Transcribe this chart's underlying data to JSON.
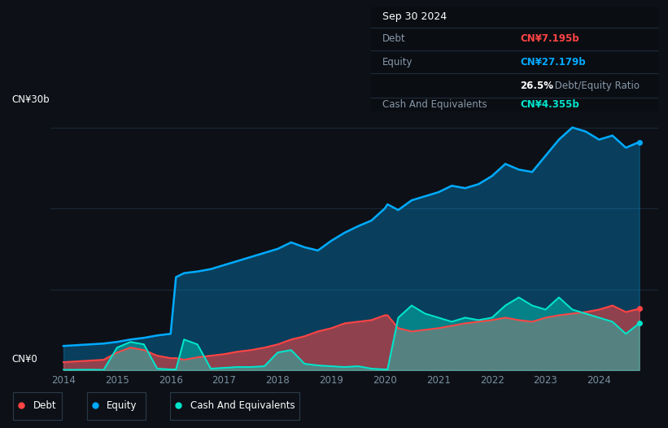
{
  "bg_color": "#0d1117",
  "plot_bg_color": "#0d1117",
  "grid_color": "#1e2d3d",
  "equity_color": "#00aaff",
  "debt_color": "#ff4444",
  "cash_color": "#00e5cc",
  "ylabel_30b": "CN¥30b",
  "ylabel_0": "CN¥0",
  "years": [
    2014.0,
    2014.25,
    2014.5,
    2014.75,
    2015.0,
    2015.25,
    2015.5,
    2015.75,
    2016.0,
    2016.1,
    2016.25,
    2016.5,
    2016.75,
    2017.0,
    2017.25,
    2017.5,
    2017.75,
    2018.0,
    2018.25,
    2018.5,
    2018.75,
    2019.0,
    2019.25,
    2019.5,
    2019.75,
    2020.0,
    2020.05,
    2020.25,
    2020.5,
    2020.75,
    2021.0,
    2021.25,
    2021.5,
    2021.75,
    2022.0,
    2022.25,
    2022.5,
    2022.75,
    2023.0,
    2023.25,
    2023.5,
    2023.75,
    2024.0,
    2024.25,
    2024.5,
    2024.75
  ],
  "equity": [
    3.0,
    3.1,
    3.2,
    3.3,
    3.5,
    3.8,
    4.0,
    4.3,
    4.5,
    11.5,
    12.0,
    12.2,
    12.5,
    13.0,
    13.5,
    14.0,
    14.5,
    15.0,
    15.8,
    15.2,
    14.8,
    16.0,
    17.0,
    17.8,
    18.5,
    20.0,
    20.5,
    19.8,
    21.0,
    21.5,
    22.0,
    22.8,
    22.5,
    23.0,
    24.0,
    25.5,
    24.8,
    24.5,
    26.5,
    28.5,
    30.0,
    29.5,
    28.5,
    29.0,
    27.5,
    28.2
  ],
  "debt": [
    1.0,
    1.1,
    1.2,
    1.3,
    2.2,
    2.8,
    2.5,
    1.8,
    1.5,
    1.5,
    1.3,
    1.6,
    1.8,
    2.0,
    2.3,
    2.5,
    2.8,
    3.2,
    3.8,
    4.2,
    4.8,
    5.2,
    5.8,
    6.0,
    6.2,
    6.8,
    6.8,
    5.2,
    4.8,
    5.0,
    5.2,
    5.5,
    5.8,
    6.0,
    6.2,
    6.5,
    6.2,
    6.0,
    6.5,
    6.8,
    7.0,
    7.2,
    7.5,
    8.0,
    7.2,
    7.6
  ],
  "cash": [
    0.05,
    0.06,
    0.07,
    0.05,
    2.8,
    3.5,
    3.2,
    0.2,
    0.1,
    0.1,
    3.8,
    3.2,
    0.2,
    0.3,
    0.4,
    0.4,
    0.5,
    2.2,
    2.5,
    0.8,
    0.6,
    0.5,
    0.4,
    0.5,
    0.2,
    0.1,
    0.1,
    6.5,
    8.0,
    7.0,
    6.5,
    6.0,
    6.5,
    6.2,
    6.5,
    8.0,
    9.0,
    8.0,
    7.5,
    9.0,
    7.5,
    7.0,
    6.5,
    6.0,
    4.5,
    5.8
  ],
  "ylim": [
    0,
    32
  ],
  "xlim": [
    2013.75,
    2025.1
  ],
  "xticks": [
    2014,
    2015,
    2016,
    2017,
    2018,
    2019,
    2020,
    2021,
    2022,
    2023,
    2024
  ],
  "tooltip_date": "Sep 30 2024",
  "tooltip_debt_label": "Debt",
  "tooltip_debt_value": "CN¥7.195b",
  "tooltip_equity_label": "Equity",
  "tooltip_equity_value": "CN¥27.179b",
  "tooltip_ratio": "26.5%",
  "tooltip_ratio_text": " Debt/Equity Ratio",
  "tooltip_cash_label": "Cash And Equivalents",
  "tooltip_cash_value": "CN¥4.355b",
  "legend_debt": "Debt",
  "legend_equity": "Equity",
  "legend_cash": "Cash And Equivalents"
}
